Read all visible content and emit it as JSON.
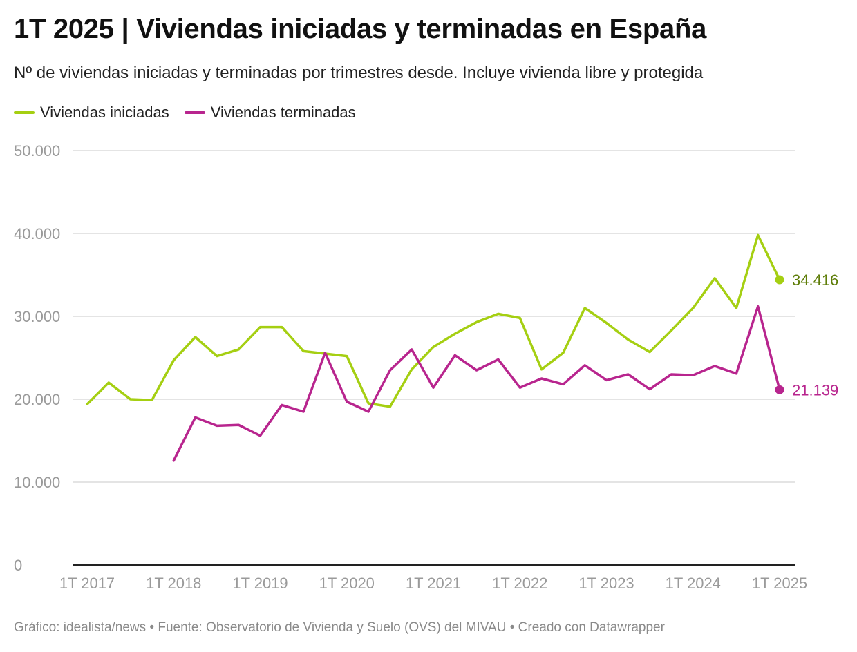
{
  "header": {
    "title": "1T 2025 | Viviendas iniciadas y terminadas en España",
    "subtitle": "Nº de viviendas iniciadas y terminadas por trimestres desde. Incluye vivienda libre y protegida"
  },
  "legend": {
    "items": [
      {
        "label": "Viviendas iniciadas",
        "color": "#a5cf12"
      },
      {
        "label": "Viviendas terminadas",
        "color": "#b8258e"
      }
    ]
  },
  "footer": {
    "text": "Gráfico: idealista/news • Fuente: Observatorio de Vivienda y Suelo (OVS) del MIVAU • Creado con Datawrapper"
  },
  "chart_data": {
    "type": "line",
    "title": "1T 2025 | Viviendas iniciadas y terminadas en España",
    "xlabel": "",
    "ylabel": "",
    "ylim": [
      0,
      50000
    ],
    "yticks": [
      0,
      10000,
      20000,
      30000,
      40000,
      50000
    ],
    "ytick_labels": [
      "0",
      "10.000",
      "20.000",
      "30.000",
      "40.000",
      "50.000"
    ],
    "grid": true,
    "x": [
      "1T 2017",
      "2T 2017",
      "3T 2017",
      "4T 2017",
      "1T 2018",
      "2T 2018",
      "3T 2018",
      "4T 2018",
      "1T 2019",
      "2T 2019",
      "3T 2019",
      "4T 2019",
      "1T 2020",
      "2T 2020",
      "3T 2020",
      "4T 2020",
      "1T 2021",
      "2T 2021",
      "3T 2021",
      "4T 2021",
      "1T 2022",
      "2T 2022",
      "3T 2022",
      "4T 2022",
      "1T 2023",
      "2T 2023",
      "3T 2023",
      "4T 2023",
      "1T 2024",
      "2T 2024",
      "3T 2024",
      "4T 2024",
      "1T 2025"
    ],
    "xtick_labels": [
      "1T 2017",
      "1T 2018",
      "1T 2019",
      "1T 2020",
      "1T 2021",
      "1T 2022",
      "1T 2023",
      "1T 2024",
      "1T 2025"
    ],
    "series": [
      {
        "name": "Viviendas iniciadas",
        "color": "#a5cf12",
        "end_label": "34.416",
        "end_label_color": "#5e7d08",
        "values": [
          19400,
          22000,
          20000,
          19900,
          24700,
          27500,
          25200,
          26000,
          28700,
          28700,
          25800,
          25500,
          25200,
          19500,
          19100,
          23600,
          26300,
          27900,
          29300,
          30300,
          29800,
          23600,
          25600,
          31000,
          29200,
          27200,
          25700,
          28300,
          31000,
          34600,
          31000,
          39800,
          34416
        ]
      },
      {
        "name": "Viviendas terminadas",
        "color": "#b8258e",
        "end_label": "21.139",
        "end_label_color": "#b8258e",
        "values": [
          null,
          null,
          null,
          null,
          12600,
          17800,
          16800,
          16900,
          15600,
          19300,
          18500,
          25600,
          19700,
          18500,
          23500,
          26000,
          21400,
          25300,
          23500,
          24800,
          21400,
          22500,
          21800,
          24100,
          22300,
          23000,
          21200,
          23000,
          22900,
          24000,
          23100,
          31200,
          21139
        ]
      }
    ]
  }
}
